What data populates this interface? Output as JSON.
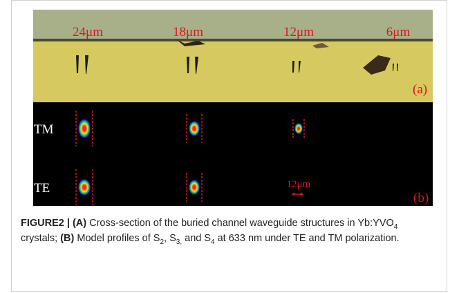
{
  "figure": {
    "panel_a": {
      "widths": [
        "24μm",
        "18μm",
        "12μm",
        "6μm"
      ],
      "label": "(a)"
    },
    "panel_b": {
      "rows": [
        "TM",
        "TE"
      ],
      "scale_bar": "12μm",
      "label": "(b)"
    },
    "caption": {
      "segments": [
        "FIGURE2 | (A)",
        " Cross-section of the buried channel waveguide structures in Yb:YVO",
        "4",
        " crystals; ",
        "(B)",
        " Model profiles of S",
        "2",
        ", S",
        "3,",
        " and S",
        "4",
        " at 633 nm under TE and TM polarization."
      ]
    }
  }
}
